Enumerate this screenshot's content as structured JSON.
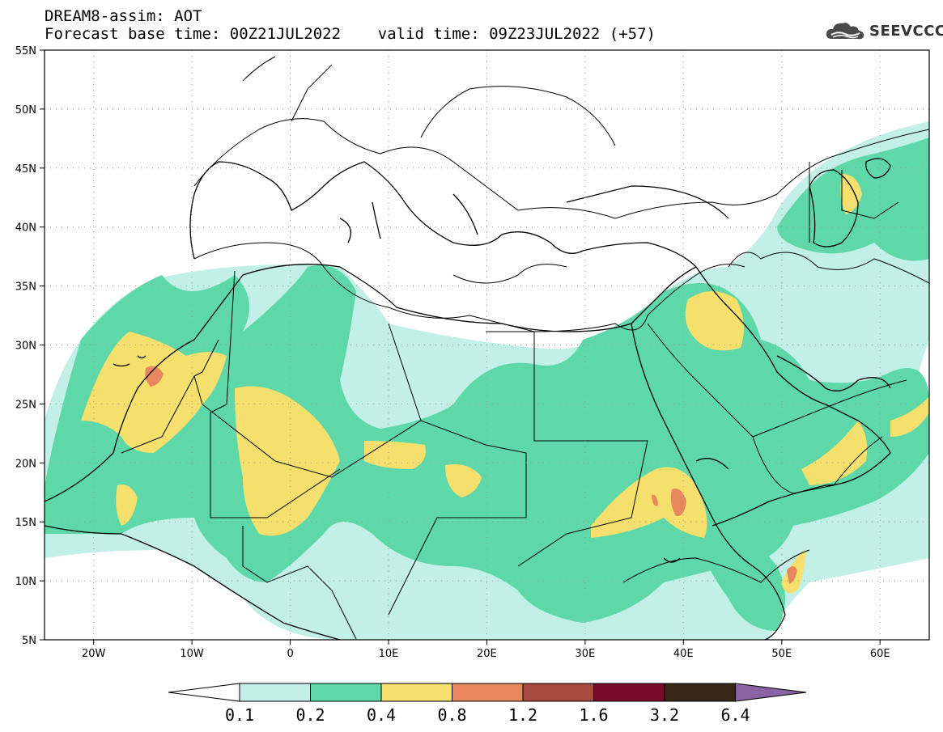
{
  "header": {
    "line1": "DREAM8-assim: AOT",
    "line2": "Forecast base time: 00Z21JUL2022    valid time: 09Z23JUL2022 (+57)"
  },
  "brand": {
    "name": "SEEVCCC",
    "icon": "cloud-logo-icon"
  },
  "map": {
    "lon_range": [
      -25,
      65
    ],
    "lat_range": [
      5,
      55
    ],
    "lon_ticks": [
      "20W",
      "10W",
      "0",
      "10E",
      "20E",
      "30E",
      "40E",
      "50E",
      "60E"
    ],
    "lat_ticks": [
      "55N",
      "50N",
      "45N",
      "40N",
      "35N",
      "30N",
      "25N",
      "20N",
      "15N",
      "10N",
      "5N"
    ],
    "grid": "dotted"
  },
  "colorbar": {
    "levels": [
      "0.1",
      "0.2",
      "0.4",
      "0.8",
      "1.2",
      "1.6",
      "3.2",
      "6.4"
    ],
    "colors": [
      "#ffffff",
      "#c2f0e6",
      "#5ed8a8",
      "#f5e06e",
      "#e8875e",
      "#a84a3e",
      "#7a0a2a",
      "#3a2618",
      "#8a63a3"
    ]
  }
}
